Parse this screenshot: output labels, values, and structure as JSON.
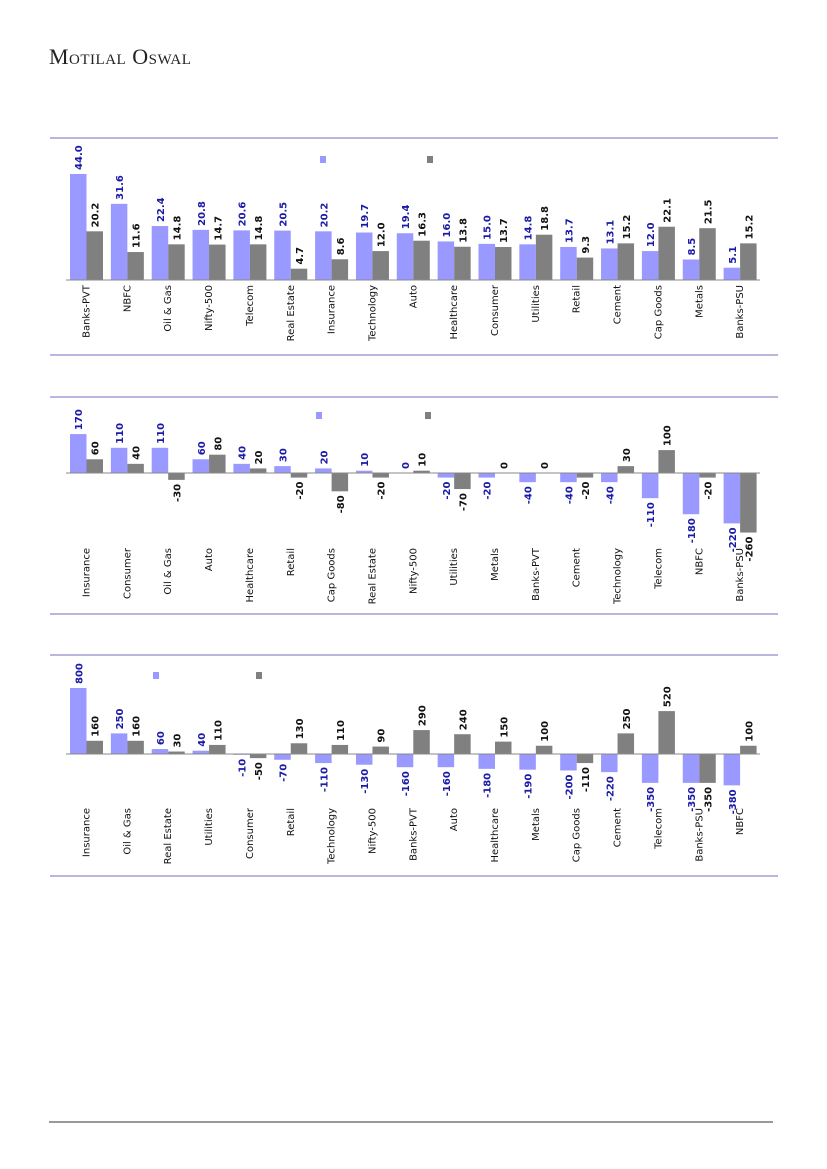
{
  "header": {
    "brand": "Motilal Oswal"
  },
  "colors": {
    "series1": "#9999ff",
    "series2": "#808080",
    "label1": "#1a1aa6",
    "label2": "#111111",
    "rule": "#6f6fbf"
  },
  "chart_data": [
    {
      "type": "bar",
      "categories": [
        "Banks-PVT",
        "NBFC",
        "Oil & Gas",
        "Nifty-500",
        "Telecom",
        "Real Estate",
        "Insurance",
        "Technology",
        "Auto",
        "Healthcare",
        "Consumer",
        "Utilities",
        "Retail",
        "Cement",
        "Cap Goods",
        "Metals",
        "Banks-PSU"
      ],
      "series": [
        {
          "name": "",
          "values": [
            44.0,
            31.6,
            22.4,
            20.8,
            20.6,
            20.5,
            20.2,
            19.7,
            19.4,
            16.0,
            15.0,
            14.8,
            13.7,
            13.1,
            12.0,
            8.5,
            5.1
          ]
        },
        {
          "name": "",
          "values": [
            20.2,
            11.6,
            14.8,
            14.7,
            14.8,
            4.7,
            8.6,
            12.0,
            16.3,
            13.8,
            13.7,
            18.8,
            9.3,
            15.2,
            22.1,
            21.5,
            15.2
          ]
        }
      ],
      "decimals": 1
    },
    {
      "type": "bar",
      "categories": [
        "Insurance",
        "Consumer",
        "Oil & Gas",
        "Auto",
        "Healthcare",
        "Retail",
        "Cap Goods",
        "Real Estate",
        "Nifty-500",
        "Utilities",
        "Metals",
        "Banks-PVT",
        "Cement",
        "Technology",
        "Telecom",
        "NBFC",
        "Banks-PSU"
      ],
      "series": [
        {
          "name": "",
          "values": [
            170,
            110,
            110,
            60,
            40,
            30,
            20,
            10,
            0,
            -20,
            -20,
            -40,
            -40,
            -40,
            -110,
            -180,
            -220
          ]
        },
        {
          "name": "",
          "values": [
            60,
            40,
            -30,
            80,
            20,
            -20,
            -80,
            -20,
            10,
            -70,
            0,
            0,
            -20,
            30,
            100,
            -20,
            -260
          ]
        }
      ],
      "decimals": 0
    },
    {
      "type": "bar",
      "categories": [
        "Insurance",
        "Oil & Gas",
        "Real Estate",
        "Utilities",
        "Consumer",
        "Retail",
        "Technology",
        "Nifty-500",
        "Banks-PVT",
        "Auto",
        "Healthcare",
        "Metals",
        "Cap Goods",
        "Cement",
        "Telecom",
        "Banks-PSU",
        "NBFC"
      ],
      "series": [
        {
          "name": "",
          "values": [
            800,
            250,
            60,
            40,
            -10,
            -70,
            -110,
            -130,
            -160,
            -160,
            -180,
            -190,
            -200,
            -220,
            -350,
            -350,
            -380
          ]
        },
        {
          "name": "",
          "values": [
            160,
            160,
            30,
            110,
            -50,
            130,
            110,
            90,
            290,
            240,
            150,
            100,
            -110,
            250,
            520,
            -350,
            100
          ]
        }
      ],
      "decimals": 0
    }
  ]
}
